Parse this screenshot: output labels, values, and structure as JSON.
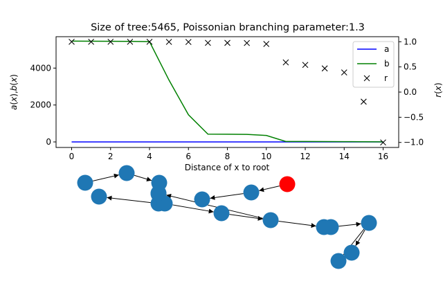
{
  "chart_data": [
    {
      "type": "line",
      "title": "Size of tree:5465, Poissonian branching parameter:1.3",
      "xlabel": "Distance of $x$ to root",
      "xlabel_display": "Distance of x to root",
      "ylabel_left": "$a(x)$,$b(x)$",
      "ylabel_right": "$r(x)$",
      "xlim": [
        -0.8,
        16.8
      ],
      "ylim_left": [
        -300,
        5700
      ],
      "ylim_right": [
        -1.1,
        1.1
      ],
      "x_ticks": [
        "0",
        "2",
        "4",
        "6",
        "8",
        "10",
        "12",
        "14",
        "16"
      ],
      "y_left_ticks": [
        "0",
        "2000",
        "4000"
      ],
      "y_right_ticks": [
        "−1.0",
        "−0.5",
        "0.0",
        "0.5",
        "1.0"
      ],
      "legend_position": "upper right",
      "series": [
        {
          "name": "a",
          "axis": "left",
          "style": "line",
          "color": "#0000ff",
          "x": [
            0,
            1,
            2,
            3,
            4,
            5,
            6,
            7,
            8,
            9,
            10,
            11,
            12,
            13,
            14,
            15,
            16
          ],
          "values": [
            2,
            2,
            2,
            2,
            2,
            2,
            2,
            2,
            2,
            2,
            2,
            2,
            2,
            2,
            2,
            2,
            2
          ]
        },
        {
          "name": "b",
          "axis": "left",
          "style": "line",
          "color": "#008000",
          "x": [
            0,
            1,
            2,
            3,
            4,
            5,
            6,
            7,
            8,
            9,
            10,
            11,
            12,
            13,
            14,
            15,
            16
          ],
          "values": [
            5463,
            5455,
            5450,
            5445,
            5432,
            3350,
            1470,
            420,
            415,
            410,
            350,
            25,
            22,
            18,
            15,
            10,
            5
          ]
        },
        {
          "name": "r",
          "axis": "right",
          "style": "marker-x",
          "color": "#000000",
          "x": [
            0,
            1,
            2,
            3,
            4,
            5,
            6,
            7,
            8,
            9,
            10,
            11,
            12,
            13,
            14,
            15,
            16
          ],
          "values": [
            0.999,
            0.999,
            0.998,
            0.998,
            0.998,
            0.997,
            0.995,
            0.978,
            0.977,
            0.975,
            0.955,
            0.59,
            0.54,
            0.47,
            0.39,
            -0.19,
            -1.0
          ]
        }
      ]
    },
    {
      "type": "graph",
      "node_color": "#1f77b4",
      "root_color": "#ff0000",
      "arrow_color": "#000000",
      "nodes": [
        {
          "id": 0,
          "root": true
        },
        {
          "id": 1
        },
        {
          "id": 2
        },
        {
          "id": 3
        },
        {
          "id": 4
        },
        {
          "id": 5
        },
        {
          "id": 6
        },
        {
          "id": 7
        },
        {
          "id": 8
        },
        {
          "id": 9
        },
        {
          "id": 10
        },
        {
          "id": 11
        },
        {
          "id": 12
        },
        {
          "id": 13
        },
        {
          "id": 14
        },
        {
          "id": 15
        },
        {
          "id": 16
        },
        {
          "id": 17
        }
      ],
      "edges": [
        {
          "from": 0,
          "to": 1
        },
        {
          "from": 1,
          "to": 2
        },
        {
          "from": 3,
          "to": 4
        },
        {
          "from": 5,
          "to": 6
        },
        {
          "from": 6,
          "to": 7
        },
        {
          "from": 7,
          "to": 8
        },
        {
          "from": 9,
          "to": 10
        },
        {
          "from": 10,
          "to": 11
        },
        {
          "from": 11,
          "to": 12
        },
        {
          "from": 12,
          "to": 13
        },
        {
          "from": 14,
          "to": 15
        },
        {
          "from": 14,
          "to": 16
        },
        {
          "from": 13,
          "to": 14
        },
        {
          "from": 11,
          "to": 17
        }
      ]
    }
  ]
}
